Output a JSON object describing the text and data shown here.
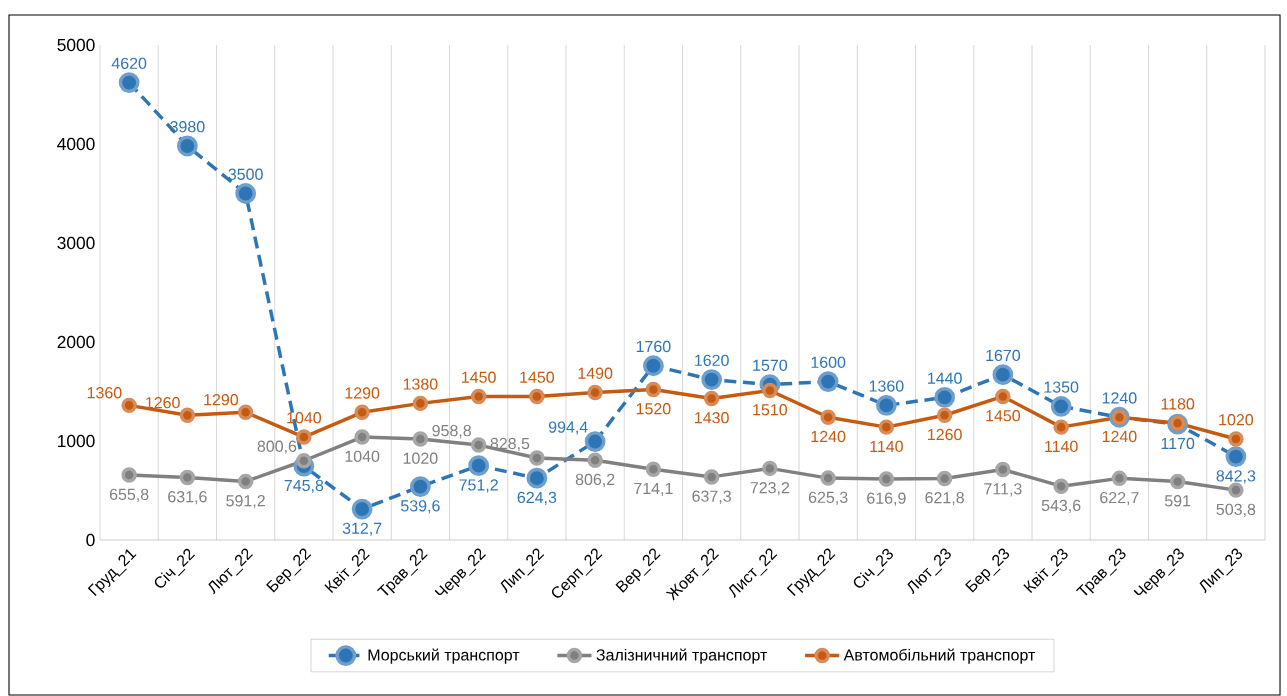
{
  "chart_data": {
    "type": "line",
    "categories": [
      "Груд_21",
      "Січ_22",
      "Лют_22",
      "Бер_22",
      "Квіт_22",
      "Трав_22",
      "Черв_22",
      "Лип_22",
      "Серп_22",
      "Вер_22",
      "Жовт_22",
      "Лист_22",
      "Груд_22",
      "Січ_23",
      "Лют_23",
      "Бер_23",
      "Квіт_23",
      "Трав_23",
      "Черв_23",
      "Лип_23"
    ],
    "series": [
      {
        "name": "Морський транспорт",
        "color": "#2e75b6",
        "line_style": "dashed",
        "values": [
          4620,
          3980,
          3500,
          745.8,
          312.7,
          539.6,
          751.2,
          624.3,
          994.4,
          1760,
          1620,
          1570,
          1600,
          1360,
          1440,
          1670,
          1350,
          1240,
          1170,
          842.3
        ],
        "value_labels": [
          "4620",
          "3980",
          "3500",
          "745,8",
          "312,7",
          "539,6",
          "751,2",
          "624,3",
          "994,4",
          "1760",
          "1620",
          "1570",
          "1600",
          "1360",
          "1440",
          "1670",
          "1350",
          "1240",
          "1170",
          "842,3"
        ]
      },
      {
        "name": "Залізничний транспорт",
        "color": "#808080",
        "line_style": "solid",
        "values": [
          655.8,
          631.6,
          591.2,
          800.6,
          1040,
          1020,
          958.8,
          828.5,
          806.2,
          714.1,
          637.3,
          723.2,
          625.3,
          616.9,
          621.8,
          711.3,
          543.6,
          622.7,
          591,
          503.8
        ],
        "value_labels": [
          "655,8",
          "631,6",
          "591,2",
          "800,6",
          "1040",
          "1020",
          "958,8",
          "828,5",
          "806,2",
          "714,1",
          "637,3",
          "723,2",
          "625,3",
          "616,9",
          "621,8",
          "711,3",
          "543,6",
          "622,7",
          "591",
          "503,8"
        ]
      },
      {
        "name": "Автомобільний транспорт",
        "color": "#c55a11",
        "line_style": "solid",
        "values": [
          1360,
          1260,
          1290,
          1040,
          1290,
          1380,
          1450,
          1450,
          1490,
          1520,
          1430,
          1510,
          1240,
          1140,
          1260,
          1450,
          1140,
          1240,
          1180,
          1020
        ],
        "value_labels": [
          "1360",
          "1260",
          "1290",
          "1040",
          "1290",
          "1380",
          "1450",
          "1450",
          "1490",
          "1520",
          "1430",
          "1510",
          "1240",
          "1140",
          "1260",
          "1450",
          "1140",
          "1240",
          "1180",
          "1020"
        ]
      }
    ],
    "ylim": [
      0,
      5000
    ],
    "yticks": [
      0,
      1000,
      2000,
      3000,
      4000,
      5000
    ],
    "grid": "x",
    "legend": "bottom",
    "marker": "circle"
  }
}
